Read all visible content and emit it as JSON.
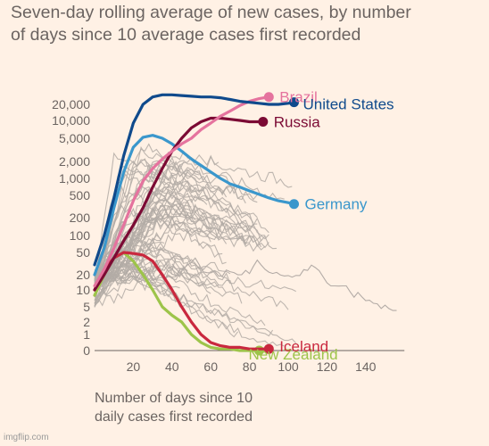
{
  "title": {
    "line1": "Seven-day rolling average of new cases, by number",
    "line2": "of days since 10 average cases first recorded"
  },
  "xlabel": {
    "line1": "Number of days since 10",
    "line2": "daily cases first recorded"
  },
  "watermark": "imgflip.com",
  "colors": {
    "background": "#fff1e5",
    "others": "#b3aba6",
    "brazil": "#e5739e",
    "united_states": "#0f4a8c",
    "russia": "#7b0a34",
    "germany": "#3a97cc",
    "iceland": "#c9283e",
    "new_zealand": "#9dc44a",
    "axis": "#6b6461"
  },
  "chart_data": {
    "type": "line",
    "xlabel": "Number of days since 10 daily cases first recorded",
    "ylabel": "",
    "xlim": [
      0,
      160
    ],
    "y_scale": "symlog",
    "x_ticks": [
      20,
      40,
      60,
      80,
      100,
      120,
      140
    ],
    "x_tick_labels": [
      "20",
      "40",
      "60",
      "80",
      "100",
      "120",
      "140"
    ],
    "y_ticks": [
      0,
      1,
      2,
      5,
      10,
      20,
      50,
      100,
      200,
      500,
      1000,
      2000,
      5000,
      10000,
      20000
    ],
    "y_tick_labels": [
      "0",
      "1",
      "2",
      "5",
      "10",
      "20",
      "50",
      "100",
      "200",
      "500",
      "1,000",
      "2,000",
      "5,000",
      "10,000",
      "20,000"
    ],
    "legend": "direct labels at line ends",
    "series": [
      {
        "name": "Brazil",
        "x": [
          0,
          5,
          10,
          15,
          20,
          25,
          30,
          35,
          40,
          45,
          50,
          55,
          60,
          65,
          70,
          75,
          80,
          85,
          90
        ],
        "y": [
          12,
          25,
          60,
          150,
          400,
          900,
          1500,
          2200,
          3000,
          4000,
          5000,
          7000,
          9000,
          12000,
          15000,
          19000,
          23000,
          26000,
          28000
        ]
      },
      {
        "name": "United States",
        "x": [
          0,
          5,
          10,
          15,
          20,
          25,
          30,
          35,
          40,
          45,
          50,
          55,
          60,
          65,
          70,
          75,
          80,
          85,
          90,
          95,
          100,
          103
        ],
        "y": [
          30,
          100,
          450,
          2500,
          9000,
          20000,
          28000,
          31000,
          31000,
          30000,
          29000,
          28000,
          28000,
          27000,
          25000,
          23000,
          22000,
          21000,
          20000,
          20000,
          21000,
          22000
        ]
      },
      {
        "name": "Russia",
        "x": [
          0,
          5,
          10,
          15,
          20,
          25,
          30,
          35,
          40,
          45,
          50,
          55,
          60,
          65,
          70,
          75,
          80,
          85,
          87
        ],
        "y": [
          10,
          20,
          40,
          80,
          150,
          300,
          700,
          1500,
          3000,
          5000,
          7500,
          9500,
          11000,
          11000,
          10500,
          10000,
          9500,
          9500,
          9500
        ]
      },
      {
        "name": "Germany",
        "x": [
          0,
          5,
          10,
          15,
          20,
          25,
          30,
          35,
          40,
          45,
          50,
          55,
          60,
          65,
          70,
          75,
          80,
          85,
          90,
          95,
          100,
          103
        ],
        "y": [
          20,
          60,
          300,
          1300,
          3500,
          5200,
          5600,
          5000,
          4000,
          3000,
          2200,
          1700,
          1300,
          1000,
          800,
          700,
          600,
          520,
          450,
          400,
          370,
          350
        ]
      },
      {
        "name": "Iceland",
        "x": [
          0,
          5,
          10,
          15,
          20,
          25,
          30,
          35,
          40,
          45,
          50,
          55,
          60,
          65,
          70,
          75,
          80,
          85,
          90
        ],
        "y": [
          10,
          25,
          40,
          50,
          48,
          45,
          35,
          20,
          10,
          5,
          2,
          1,
          0.5,
          0.3,
          0.2,
          0.2,
          0.1,
          0.1,
          0.1
        ]
      },
      {
        "name": "New Zealand",
        "x": [
          0,
          5,
          10,
          15,
          20,
          25,
          30,
          35,
          40,
          45,
          50,
          55,
          60,
          65,
          70,
          75,
          80,
          85
        ],
        "y": [
          8,
          20,
          40,
          50,
          35,
          20,
          10,
          5,
          3,
          2,
          1,
          0.5,
          0.2,
          0.1,
          0.1,
          0,
          0,
          0
        ]
      }
    ]
  }
}
